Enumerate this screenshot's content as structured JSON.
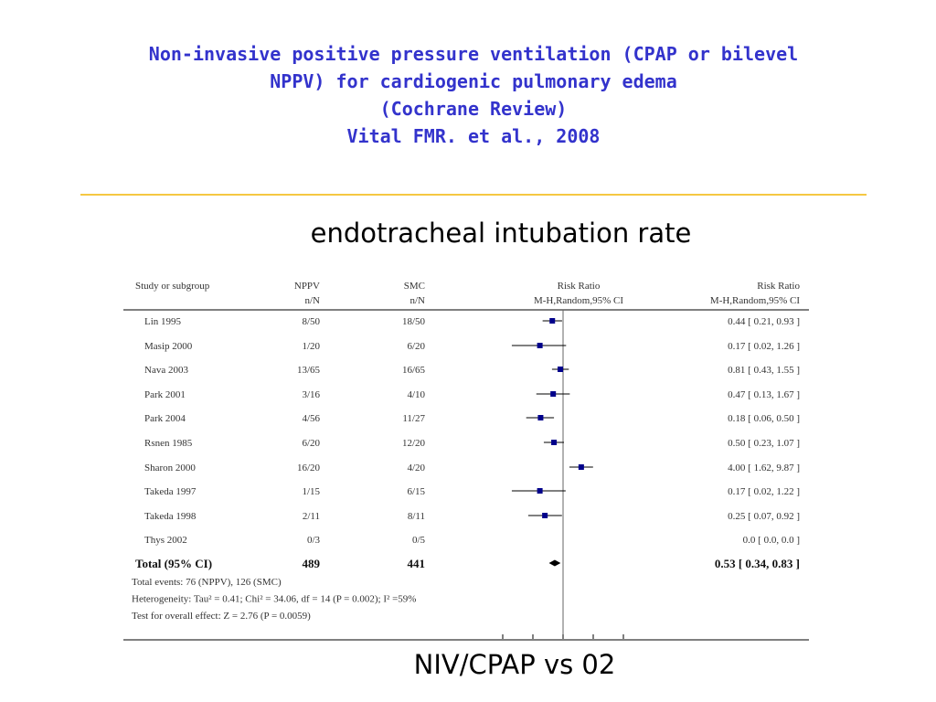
{
  "slide": {
    "title_lines": [
      "Non-invasive positive pressure ventilation (CPAP or bilevel",
      "NPPV) for cardiogenic pulmonary edema",
      "(Cochrane Review)",
      "Vital FMR. et al., 2008"
    ],
    "subtitle": "endotracheal intubation rate",
    "footer": "NIV/CPAP vs 02"
  },
  "colors": {
    "title": "#3333cc",
    "rule": "#f5c842",
    "marker": "#00008b"
  },
  "chart_data": {
    "type": "forest",
    "headers": {
      "study": "Study or subgroup",
      "group1": "NPPV",
      "group2": "SMC",
      "plot": "Risk Ratio",
      "estimate": "Risk Ratio",
      "group1_sub": "n/N",
      "group2_sub": "n/N",
      "plot_sub": "M-H,Random,95% CI",
      "estimate_sub": "M-H,Random,95% CI"
    },
    "studies": [
      {
        "name": "Lin 1995",
        "g1": "8/50",
        "g2": "18/50",
        "rr": 0.44,
        "lo": 0.21,
        "hi": 0.93,
        "label": "0.44 [ 0.21, 0.93 ]"
      },
      {
        "name": "Masip 2000",
        "g1": "1/20",
        "g2": "6/20",
        "rr": 0.17,
        "lo": 0.02,
        "hi": 1.26,
        "label": "0.17 [ 0.02, 1.26 ]"
      },
      {
        "name": "Nava 2003",
        "g1": "13/65",
        "g2": "16/65",
        "rr": 0.81,
        "lo": 0.43,
        "hi": 1.55,
        "label": "0.81 [ 0.43, 1.55 ]"
      },
      {
        "name": "Park 2001",
        "g1": "3/16",
        "g2": "4/10",
        "rr": 0.47,
        "lo": 0.13,
        "hi": 1.67,
        "label": "0.47 [ 0.13, 1.67 ]"
      },
      {
        "name": "Park 2004",
        "g1": "4/56",
        "g2": "11/27",
        "rr": 0.18,
        "lo": 0.06,
        "hi": 0.5,
        "label": "0.18 [ 0.06, 0.50 ]"
      },
      {
        "name": "Rsnen 1985",
        "g1": "6/20",
        "g2": "12/20",
        "rr": 0.5,
        "lo": 0.23,
        "hi": 1.07,
        "label": "0.50 [ 0.23, 1.07 ]"
      },
      {
        "name": "Sharon 2000",
        "g1": "16/20",
        "g2": "4/20",
        "rr": 4.0,
        "lo": 1.62,
        "hi": 9.87,
        "label": "4.00 [ 1.62, 9.87 ]"
      },
      {
        "name": "Takeda 1997",
        "g1": "1/15",
        "g2": "6/15",
        "rr": 0.17,
        "lo": 0.02,
        "hi": 1.22,
        "label": "0.17 [ 0.02, 1.22 ]"
      },
      {
        "name": "Takeda 1998",
        "g1": "2/11",
        "g2": "8/11",
        "rr": 0.25,
        "lo": 0.07,
        "hi": 0.92,
        "label": "0.25 [ 0.07, 0.92 ]"
      },
      {
        "name": "Thys 2002",
        "g1": "0/3",
        "g2": "0/5",
        "rr": null,
        "lo": null,
        "hi": null,
        "label": "0.0 [ 0.0, 0.0 ]"
      }
    ],
    "total": {
      "name": "Total (95% CI)",
      "g1": "489",
      "g2": "441",
      "rr": 0.53,
      "lo": 0.34,
      "hi": 0.83,
      "label": "0.53 [ 0.34, 0.83 ]"
    },
    "notes": [
      "Total events: 76 (NPPV), 126 (SMC)",
      "Heterogeneity: Tau² = 0.41; Chi² = 34.06, df = 14 (P = 0.002); I² =59%",
      "Test for overall effect: Z = 2.76 (P = 0.0059)"
    ],
    "x_scale": "log",
    "xlim": [
      0.01,
      100
    ],
    "reference_line": 1
  }
}
